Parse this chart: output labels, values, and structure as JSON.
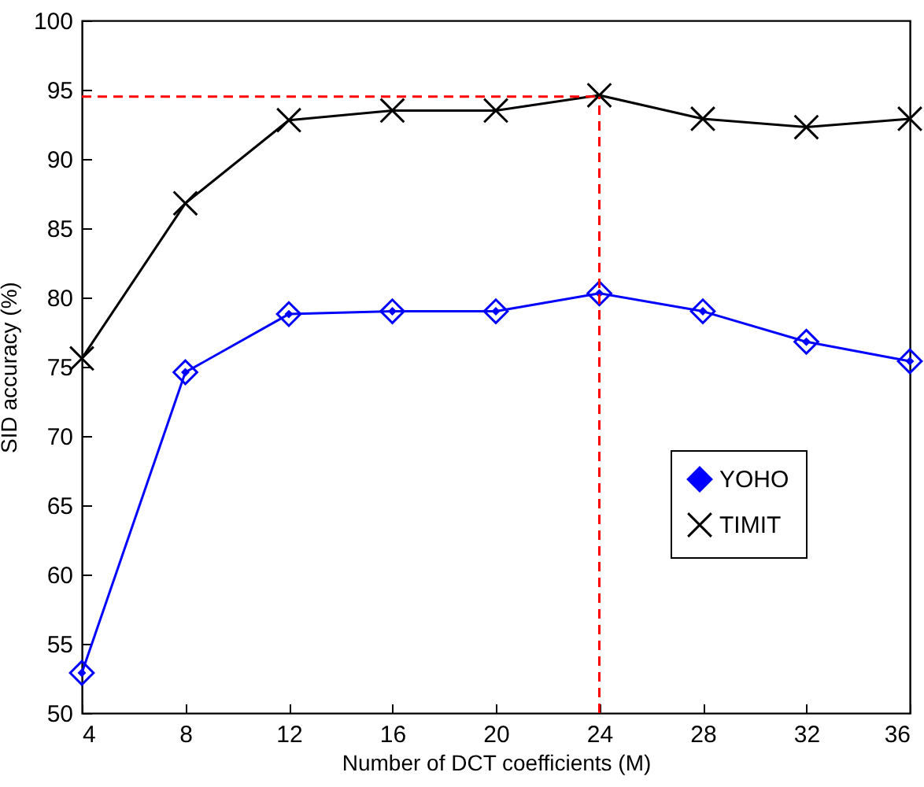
{
  "chart_data": {
    "type": "line",
    "xlabel": "Number of DCT coefficients (M)",
    "ylabel": "SID accuracy (%)",
    "x": [
      4,
      8,
      12,
      16,
      20,
      24,
      28,
      32,
      36
    ],
    "series": [
      {
        "name": "YOHO",
        "color": "#0000ff",
        "marker": "diamond",
        "values": [
          52.9,
          74.6,
          78.8,
          79.0,
          79.0,
          80.3,
          79.0,
          76.8,
          75.4
        ]
      },
      {
        "name": "TIMIT",
        "color": "#000000",
        "marker": "cross",
        "values": [
          75.6,
          86.8,
          92.8,
          93.5,
          93.5,
          94.6,
          92.9,
          92.3,
          92.9
        ]
      }
    ],
    "xlim": [
      4,
      36
    ],
    "xticks": [
      4,
      8,
      12,
      16,
      20,
      24,
      28,
      32,
      36
    ],
    "ylim": [
      50,
      100
    ],
    "yticks": [
      50,
      55,
      60,
      65,
      70,
      75,
      80,
      85,
      90,
      95,
      100
    ],
    "ref_lines": [
      {
        "axis": "y",
        "value": 94.5,
        "color": "#ff0000",
        "line_style": "dashed"
      },
      {
        "axis": "x",
        "value": 24,
        "color": "#ff0000",
        "line_style": "dashed"
      }
    ],
    "legend": "right",
    "grid": false,
    "line_style": "solid"
  }
}
